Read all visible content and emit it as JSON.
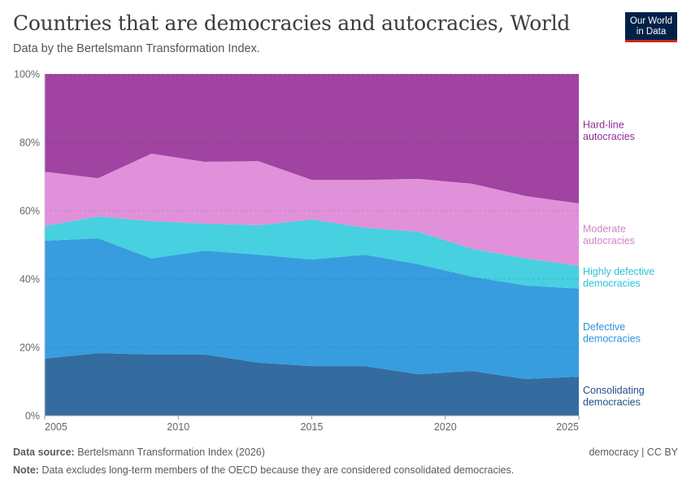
{
  "header": {
    "title": "Countries that are democracies and autocracies, World",
    "subtitle": "Data by the Bertelsmann Transformation Index.",
    "logo_text": "Our World in Data"
  },
  "footer": {
    "source_label": "Data source:",
    "source": "Bertelsmann Transformation Index (2026)",
    "note_label": "Note:",
    "note": "Data excludes long-term members of the OECD because they are considered consolidated democracies.",
    "license": "democracy | CC BY"
  },
  "chart_data": {
    "type": "area",
    "stacked": true,
    "title": "Countries that are democracies and autocracies, World",
    "subtitle": "Data by the Bertelsmann Transformation Index.",
    "x": [
      2005,
      2007,
      2009,
      2011,
      2013,
      2015,
      2017,
      2019,
      2021,
      2023,
      2025
    ],
    "xticks": [
      "2005",
      "2010",
      "2015",
      "2020",
      "2025"
    ],
    "xtick_values": [
      2005,
      2010,
      2015,
      2020,
      2025
    ],
    "yticks": [
      "0%",
      "20%",
      "40%",
      "60%",
      "80%",
      "100%"
    ],
    "ytick_values": [
      0,
      20,
      40,
      60,
      80,
      100
    ],
    "ylim": [
      0,
      100
    ],
    "grid": "horizontal",
    "legend": "right, labels aligned to series",
    "series": [
      {
        "name": "Consolidating democracies",
        "label_lines": [
          "Consolidating",
          "democracies"
        ],
        "color": "#346c9f",
        "label_color": "#1f4e85",
        "values": [
          16.7,
          18.3,
          17.9,
          17.9,
          15.5,
          14.5,
          14.5,
          12.1,
          13.1,
          10.7,
          11.4
        ]
      },
      {
        "name": "Defective democracies",
        "label_lines": [
          "Defective",
          "democracies"
        ],
        "color": "#379ddf",
        "label_color": "#2f93d9",
        "values": [
          34.5,
          33.6,
          28.1,
          30.4,
          31.6,
          31.2,
          32.6,
          32.2,
          27.6,
          27.4,
          25.8
        ]
      },
      {
        "name": "Highly defective democracies",
        "label_lines": [
          "Highly defective",
          "democracies"
        ],
        "color": "#46d0e0",
        "label_color": "#2cc3d6",
        "values": [
          4.3,
          6.4,
          10.9,
          7.9,
          8.6,
          11.7,
          7.9,
          9.5,
          8.1,
          7.9,
          6.6
        ]
      },
      {
        "name": "Moderate autocracies",
        "label_lines": [
          "Moderate",
          "autocracies"
        ],
        "color": "#e091da",
        "label_color": "#d184cb",
        "values": [
          15.9,
          11.2,
          19.8,
          18.1,
          18.8,
          11.6,
          14.0,
          15.5,
          19.1,
          18.3,
          18.3
        ]
      },
      {
        "name": "Hard-line autocracies",
        "label_lines": [
          "Hard-line",
          "autocracies"
        ],
        "color": "#a043a1",
        "label_color": "#932c93",
        "values": [
          28.6,
          30.5,
          23.3,
          25.7,
          25.5,
          31.0,
          31.0,
          30.7,
          32.1,
          35.7,
          37.9
        ]
      }
    ]
  }
}
